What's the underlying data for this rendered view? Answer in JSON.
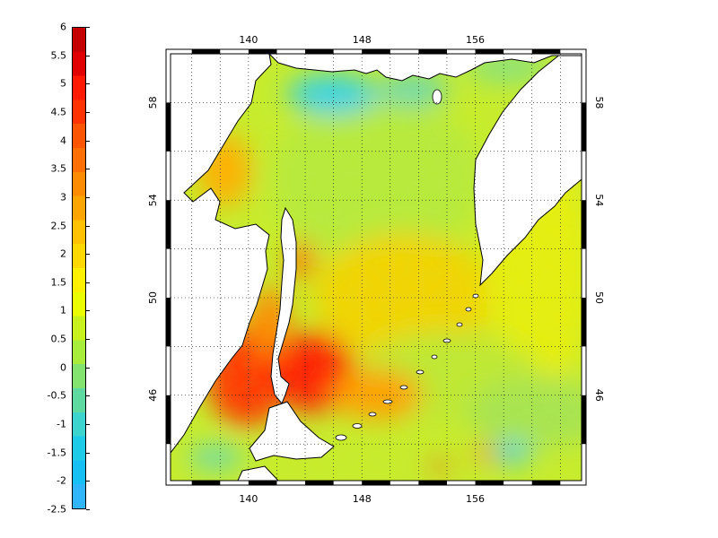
{
  "colorbar": {
    "min": -2.5,
    "max": 6,
    "tick_labels": [
      "6",
      "5.5",
      "5",
      "4.5",
      "4",
      "3.5",
      "3",
      "2.5",
      "2",
      "1.5",
      "1",
      "0.5",
      "0",
      "-0.5",
      "-1",
      "-1.5",
      "-2",
      "-2.5"
    ],
    "colors_top_to_bottom": [
      "#c40000",
      "#e00000",
      "#ff1a00",
      "#ff3300",
      "#ff5500",
      "#ff7000",
      "#ff8c00",
      "#ffa500",
      "#ffc000",
      "#ffd800",
      "#fff000",
      "#eaff00",
      "#c8f21e",
      "#a8ec3c",
      "#82e36e",
      "#5ed9a0",
      "#3cd4cc",
      "#1ecbe8",
      "#16c0f5",
      "#30b4fa"
    ]
  },
  "map": {
    "lon_ticks_top": [
      "140",
      "148",
      "156"
    ],
    "lon_ticks_bottom": [
      "140",
      "148",
      "156"
    ],
    "lat_ticks_left": [
      "58",
      "54",
      "50",
      "46"
    ],
    "lat_ticks_right": [
      "58",
      "54",
      "50",
      "46"
    ],
    "lon_range": [
      134.5,
      163.5
    ],
    "lat_range": [
      42.5,
      60
    ],
    "grid": "dotted"
  }
}
